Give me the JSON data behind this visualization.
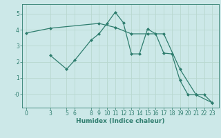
{
  "line1_x": [
    0,
    3,
    9,
    11,
    13,
    15,
    17,
    19,
    21,
    23
  ],
  "line1_y": [
    3.8,
    4.1,
    4.4,
    4.15,
    3.75,
    3.75,
    3.75,
    1.55,
    -0.05,
    -0.55
  ],
  "line2_x": [
    3,
    5,
    6,
    8,
    9,
    10,
    11,
    12,
    13,
    14,
    15,
    16,
    17,
    18,
    19,
    20,
    21,
    22,
    23
  ],
  "line2_y": [
    2.4,
    1.55,
    2.1,
    3.35,
    3.75,
    4.4,
    5.1,
    4.45,
    2.5,
    2.5,
    4.05,
    3.75,
    2.55,
    2.5,
    0.85,
    -0.05,
    -0.05,
    -0.05,
    -0.55
  ],
  "line_color": "#2e7d6e",
  "background_color": "#cce8e8",
  "grid_color": "#b8d8d0",
  "xlabel": "Humidex (Indice chaleur)",
  "xticks": [
    0,
    3,
    5,
    6,
    8,
    9,
    10,
    11,
    12,
    13,
    14,
    15,
    16,
    17,
    18,
    19,
    20,
    21,
    22,
    23
  ],
  "yticks": [
    0,
    1,
    2,
    3,
    4,
    5
  ],
  "ytick_labels": [
    "-0",
    "1",
    "2",
    "3",
    "4",
    "5"
  ],
  "xlim": [
    -0.5,
    23.8
  ],
  "ylim": [
    -0.85,
    5.6
  ],
  "marker": "D",
  "markersize": 2.0,
  "linewidth": 0.9,
  "tick_fontsize": 5.5,
  "xlabel_fontsize": 6.5
}
